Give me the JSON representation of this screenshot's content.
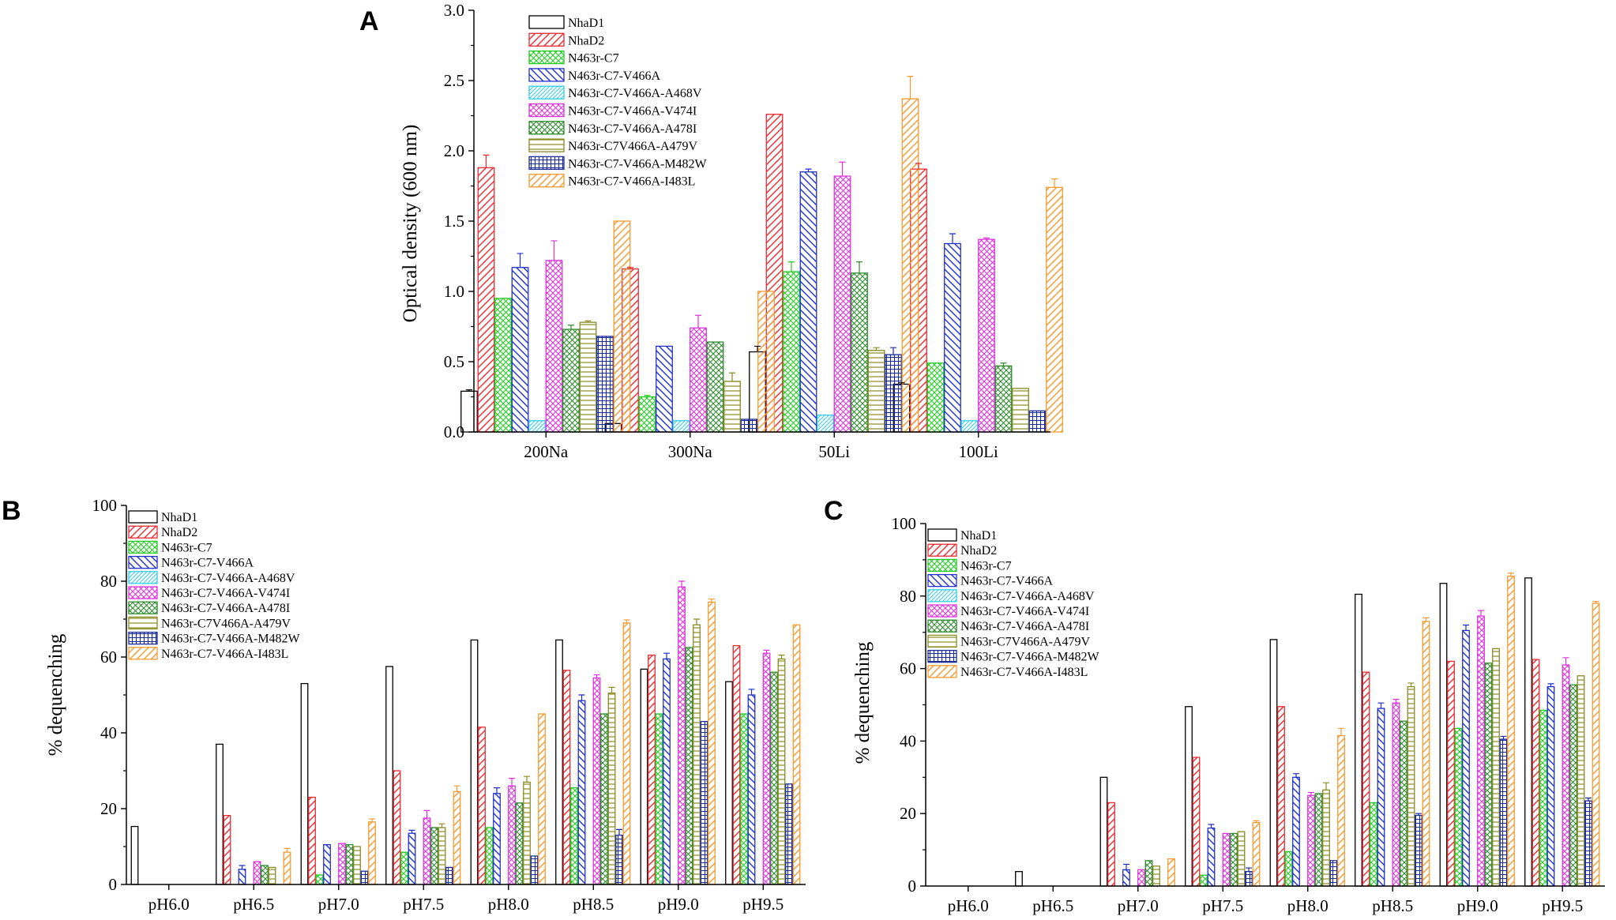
{
  "series_styles": [
    {
      "name": "NhaD1",
      "color": "#000000",
      "pattern": "none"
    },
    {
      "name": "NhaD2",
      "color": "#e8292f",
      "pattern": "diag_fwd"
    },
    {
      "name": "N463r-C7",
      "color": "#22cc22",
      "pattern": "cross"
    },
    {
      "name": "N463r-C7-V466A",
      "color": "#1f2fcc",
      "pattern": "diag_back"
    },
    {
      "name": "N463r-C7-V466A-A468V",
      "color": "#33ccee",
      "pattern": "diag_fine"
    },
    {
      "name": "N463r-C7-V466A-V474I",
      "color": "#dd33dd",
      "pattern": "cross"
    },
    {
      "name": "N463r-C7-V466A-A478I",
      "color": "#2d8a2d",
      "pattern": "cross"
    },
    {
      "name": "N463r-C7V466A-A479V",
      "color": "#8a8a22",
      "pattern": "horiz"
    },
    {
      "name": "N463r-C7-V466A-M482W",
      "color": "#1a2a99",
      "pattern": "grid"
    },
    {
      "name": "N463r-C7-V466A-I483L",
      "color": "#f59a30",
      "pattern": "diag_fwd"
    }
  ],
  "chart_data": [
    {
      "panel": "A",
      "type": "bar",
      "title": "",
      "xlabel": "",
      "ylabel": "Optical density (600 nm)",
      "ylim": [
        0,
        3.0
      ],
      "yticks": [
        "0.0",
        "0.5",
        "1.0",
        "1.5",
        "2.0",
        "2.5",
        "3.0"
      ],
      "categories": [
        "200Na",
        "300Na",
        "50Li",
        "100Li"
      ],
      "series": [
        {
          "name": "NhaD1",
          "values": [
            0.29,
            0.06,
            0.57,
            0.34
          ],
          "errors": [
            0.01,
            0.0,
            0.04,
            0.01
          ]
        },
        {
          "name": "NhaD2",
          "values": [
            1.88,
            1.16,
            2.26,
            1.87
          ],
          "errors": [
            0.09,
            0.01,
            0.0,
            0.04
          ]
        },
        {
          "name": "N463r-C7",
          "values": [
            0.95,
            0.25,
            1.14,
            0.49
          ],
          "errors": [
            0.0,
            0.01,
            0.07,
            0.0
          ]
        },
        {
          "name": "N463r-C7-V466A",
          "values": [
            1.17,
            0.61,
            1.85,
            1.34
          ],
          "errors": [
            0.1,
            0.0,
            0.02,
            0.07
          ]
        },
        {
          "name": "N463r-C7-V466A-A468V",
          "values": [
            0.08,
            0.08,
            0.12,
            0.08
          ],
          "errors": [
            0.0,
            0.0,
            0.0,
            0.0
          ]
        },
        {
          "name": "N463r-C7-V466A-V474I",
          "values": [
            1.22,
            0.74,
            1.82,
            1.37
          ],
          "errors": [
            0.14,
            0.09,
            0.1,
            0.01
          ]
        },
        {
          "name": "N463r-C7-V466A-A478I",
          "values": [
            0.73,
            0.64,
            1.13,
            0.47
          ],
          "errors": [
            0.03,
            0.0,
            0.08,
            0.02
          ]
        },
        {
          "name": "N463r-C7V466A-A479V",
          "values": [
            0.78,
            0.36,
            0.58,
            0.31
          ],
          "errors": [
            0.01,
            0.06,
            0.02,
            0.0
          ]
        },
        {
          "name": "N463r-C7-V466A-M482W",
          "values": [
            0.68,
            0.09,
            0.55,
            0.15
          ],
          "errors": [
            0.0,
            0.0,
            0.05,
            0.0
          ]
        },
        {
          "name": "N463r-C7-V466A-I483L",
          "values": [
            1.5,
            1.0,
            2.37,
            1.74
          ],
          "errors": [
            0.0,
            0.0,
            0.16,
            0.06
          ]
        }
      ]
    },
    {
      "panel": "B",
      "type": "bar",
      "title": "",
      "xlabel": "",
      "ylabel": "% dequenching",
      "ylim": [
        0,
        100
      ],
      "yticks": [
        "0",
        "20",
        "40",
        "60",
        "80",
        "100"
      ],
      "categories": [
        "pH6.0",
        "pH6.5",
        "pH7.0",
        "pH7.5",
        "pH8.0",
        "pH8.5",
        "pH9.0",
        "pH9.5"
      ],
      "series": [
        {
          "name": "NhaD1",
          "values": [
            15.3,
            37.0,
            53.0,
            57.5,
            64.5,
            64.5,
            56.8,
            53.5
          ],
          "errors": [
            0,
            0,
            0,
            0,
            0,
            0,
            0,
            0
          ]
        },
        {
          "name": "NhaD2",
          "values": [
            0,
            18.2,
            23.0,
            30.0,
            41.5,
            56.5,
            60.5,
            63.0
          ],
          "errors": [
            0,
            0,
            0,
            0,
            0,
            0,
            0,
            0
          ]
        },
        {
          "name": "N463r-C7",
          "values": [
            0,
            0,
            2.5,
            8.5,
            15.0,
            25.5,
            45.0,
            45.0
          ],
          "errors": [
            0,
            0,
            0,
            0,
            0,
            0,
            0,
            0
          ]
        },
        {
          "name": "N463r-C7-V466A",
          "values": [
            0,
            4.0,
            10.5,
            13.5,
            24.0,
            48.5,
            59.5,
            50.0
          ],
          "errors": [
            0,
            1.0,
            0,
            0.8,
            1.5,
            1.5,
            1.5,
            1.5
          ]
        },
        {
          "name": "N463r-C7-V466A-A468V",
          "values": [
            0,
            0,
            0,
            0,
            0,
            0,
            0,
            0
          ],
          "errors": [
            0,
            0,
            0,
            0,
            0,
            0,
            0,
            0
          ]
        },
        {
          "name": "N463r-C7-V466A-V474I",
          "values": [
            0,
            6.0,
            10.8,
            17.5,
            26.0,
            54.5,
            78.5,
            61.0
          ],
          "errors": [
            0,
            0,
            0,
            2.0,
            2.0,
            0.8,
            1.5,
            0.8
          ]
        },
        {
          "name": "N463r-C7-V466A-A478I",
          "values": [
            0,
            5.0,
            10.5,
            15.0,
            21.5,
            45.0,
            62.5,
            56.0
          ],
          "errors": [
            0,
            0,
            0,
            0,
            0,
            0,
            0,
            0
          ]
        },
        {
          "name": "N463r-C7V466A-A479V",
          "values": [
            0,
            4.5,
            10.0,
            15.0,
            27.0,
            50.5,
            68.5,
            59.5
          ],
          "errors": [
            0,
            0,
            0,
            1.0,
            1.5,
            1.5,
            1.5,
            1.0
          ]
        },
        {
          "name": "N463r-C7-V466A-M482W",
          "values": [
            0,
            0,
            3.5,
            4.5,
            7.5,
            13.0,
            43.0,
            26.5
          ],
          "errors": [
            0,
            0,
            0,
            0,
            0,
            1.5,
            0,
            0
          ]
        },
        {
          "name": "N463r-C7-V466A-I483L",
          "values": [
            0,
            8.5,
            16.5,
            24.5,
            45.0,
            69.0,
            74.5,
            68.5
          ],
          "errors": [
            0,
            1.0,
            0.8,
            1.5,
            0,
            0.8,
            0.8,
            0
          ]
        }
      ]
    },
    {
      "panel": "C",
      "type": "bar",
      "title": "",
      "xlabel": "",
      "ylabel": "% dequenching",
      "ylim": [
        0,
        100
      ],
      "yticks": [
        "0",
        "20",
        "40",
        "60",
        "80",
        "100"
      ],
      "categories": [
        "pH6.0",
        "pH6.5",
        "pH7.0",
        "pH7.5",
        "pH8.0",
        "pH8.5",
        "pH9.0",
        "pH9.5"
      ],
      "series": [
        {
          "name": "NhaD1",
          "values": [
            0,
            4.0,
            30.0,
            49.5,
            68.0,
            80.5,
            83.5,
            85.0
          ],
          "errors": [
            0,
            0,
            0,
            0,
            0,
            0,
            0,
            0
          ]
        },
        {
          "name": "NhaD2",
          "values": [
            0,
            0,
            23.0,
            35.5,
            49.5,
            59.0,
            62.0,
            62.5
          ],
          "errors": [
            0,
            0,
            0,
            0,
            0,
            0,
            0,
            0
          ]
        },
        {
          "name": "N463r-C7",
          "values": [
            0,
            0,
            0,
            3.0,
            9.5,
            23.0,
            43.5,
            48.5
          ],
          "errors": [
            0,
            0,
            0,
            0,
            0,
            0,
            0,
            0
          ]
        },
        {
          "name": "N463r-C7-V466A",
          "values": [
            0,
            0,
            4.5,
            16.0,
            30.0,
            49.0,
            70.5,
            55.0
          ],
          "errors": [
            0,
            0,
            1.5,
            1.0,
            1.0,
            1.5,
            1.5,
            0.8
          ]
        },
        {
          "name": "N463r-C7-V466A-A468V",
          "values": [
            0,
            0,
            0,
            0,
            0,
            0,
            0,
            0
          ],
          "errors": [
            0,
            0,
            0,
            0,
            0,
            0,
            0,
            0
          ]
        },
        {
          "name": "N463r-C7-V466A-V474I",
          "values": [
            0,
            0,
            4.5,
            14.5,
            25.0,
            50.5,
            74.5,
            61.0
          ],
          "errors": [
            0,
            0,
            0,
            0,
            0.8,
            1.0,
            1.5,
            2.0
          ]
        },
        {
          "name": "N463r-C7-V466A-A478I",
          "values": [
            0,
            0,
            7.0,
            14.5,
            25.5,
            45.5,
            61.5,
            55.5
          ],
          "errors": [
            0,
            0,
            0,
            0,
            0,
            0,
            0,
            0
          ]
        },
        {
          "name": "N463r-C7V466A-A479V",
          "values": [
            0,
            0,
            5.5,
            15.0,
            26.5,
            55.0,
            65.5,
            58.0
          ],
          "errors": [
            0,
            0,
            0,
            0,
            2.0,
            1.0,
            0,
            0
          ]
        },
        {
          "name": "N463r-C7-V466A-M482W",
          "values": [
            0,
            0,
            0,
            4.0,
            7.0,
            19.5,
            40.5,
            23.5
          ],
          "errors": [
            0,
            0,
            0,
            1.0,
            0,
            0.5,
            0.8,
            0.8
          ]
        },
        {
          "name": "N463r-C7-V466A-I483L",
          "values": [
            0,
            0,
            7.5,
            17.5,
            41.5,
            73.0,
            85.5,
            78.0
          ],
          "errors": [
            0,
            0,
            0,
            0.5,
            2.0,
            1.0,
            0.8,
            0.5
          ]
        }
      ]
    }
  ]
}
